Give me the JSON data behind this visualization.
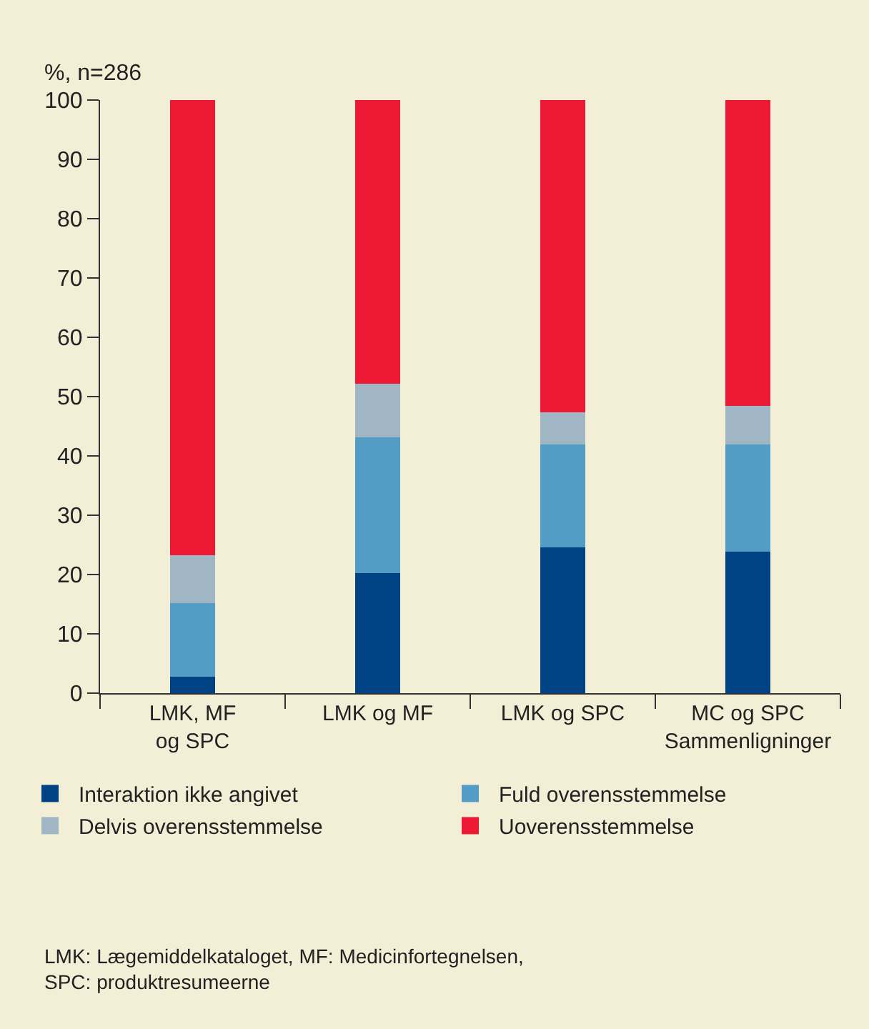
{
  "chart_data": {
    "type": "bar",
    "stacked": true,
    "ylabel": "%, n=286",
    "categories": [
      "LMK, MF\nog SPC",
      "LMK og MF",
      "LMK og SPC",
      "MC og SPC\nSammenligninger"
    ],
    "series": [
      {
        "name": "Interaktion ikke angivet",
        "color": "#004385",
        "values": [
          2.8,
          20.3,
          24.6,
          23.9
        ]
      },
      {
        "name": "Fuld overensstemmelse",
        "color": "#529cc6",
        "values": [
          12.4,
          22.8,
          17.3,
          18.0
        ]
      },
      {
        "name": "Delvis overensstemmelse",
        "color": "#a0b6c4",
        "values": [
          8.1,
          9.1,
          5.5,
          6.5
        ]
      },
      {
        "name": "Uoverensstemmelse",
        "color": "#ee1935",
        "values": [
          76.7,
          47.8,
          52.6,
          51.6
        ]
      }
    ],
    "ylim": [
      0,
      100
    ],
    "yticks": [
      0,
      10,
      20,
      30,
      40,
      50,
      60,
      70,
      80,
      90,
      100
    ],
    "grid": false,
    "legend": "bottom",
    "annotations": [
      "LMK: Lægemiddelkataloget, MF: Medicinfortegnelsen,\nSPC: produktresumeerne"
    ]
  }
}
